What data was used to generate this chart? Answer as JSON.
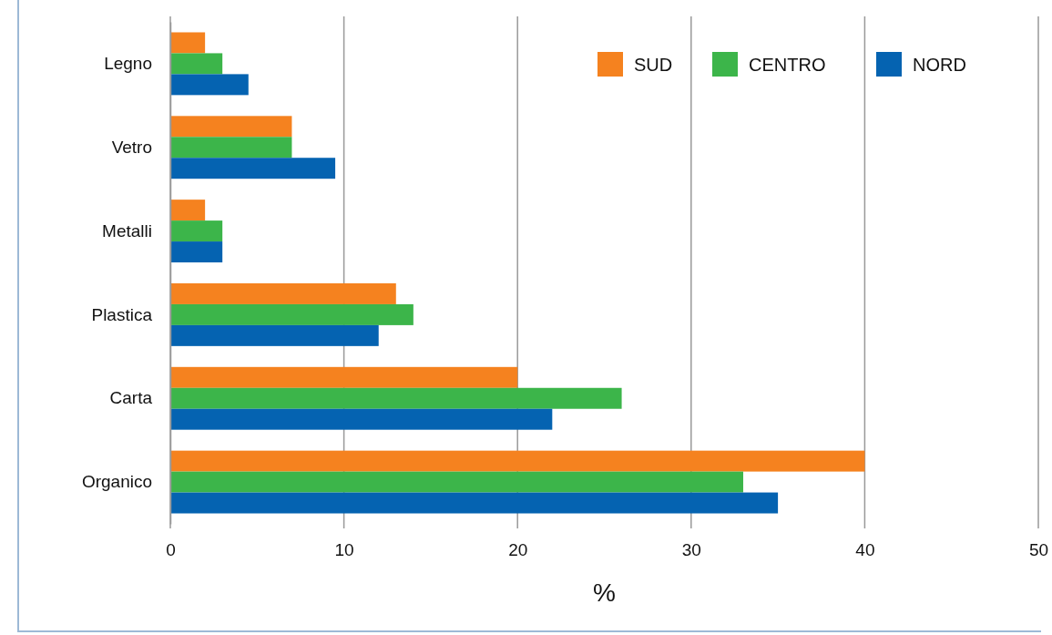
{
  "chart_data": {
    "type": "bar",
    "orientation": "horizontal",
    "categories": [
      "Legno",
      "Vetro",
      "Metalli",
      "Plastica",
      "Carta",
      "Organico"
    ],
    "series": [
      {
        "name": "SUD",
        "color": "#f5821f",
        "values": [
          2,
          7,
          2,
          13,
          20,
          40
        ]
      },
      {
        "name": "CENTRO",
        "color": "#3cb54a",
        "values": [
          3,
          7,
          3,
          14,
          26,
          33
        ]
      },
      {
        "name": "NORD",
        "color": "#0563b1",
        "values": [
          4.5,
          9.5,
          3,
          12,
          22,
          35
        ]
      }
    ],
    "xlabel": "%",
    "xlim": [
      0,
      50
    ],
    "xticks": [
      0,
      10,
      20,
      30,
      40,
      50
    ],
    "grid": "x",
    "legend": "top right"
  }
}
